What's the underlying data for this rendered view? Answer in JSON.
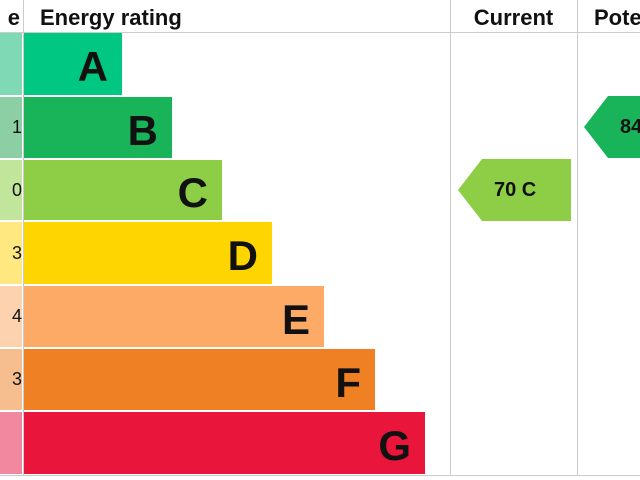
{
  "header": {
    "score": "e",
    "rating": "Energy rating",
    "current": "Current",
    "potential": "Pote"
  },
  "rows": [
    {
      "score": null,
      "letter": "A"
    },
    {
      "score": "1",
      "letter": "B"
    },
    {
      "score": "0",
      "letter": "C"
    },
    {
      "score": "3",
      "letter": "D"
    },
    {
      "score": "4",
      "letter": "E"
    },
    {
      "score": "3",
      "letter": "F"
    },
    {
      "score": null,
      "letter": "G"
    }
  ],
  "current": {
    "label": "70 C"
  },
  "potential": {
    "label": "84"
  }
}
